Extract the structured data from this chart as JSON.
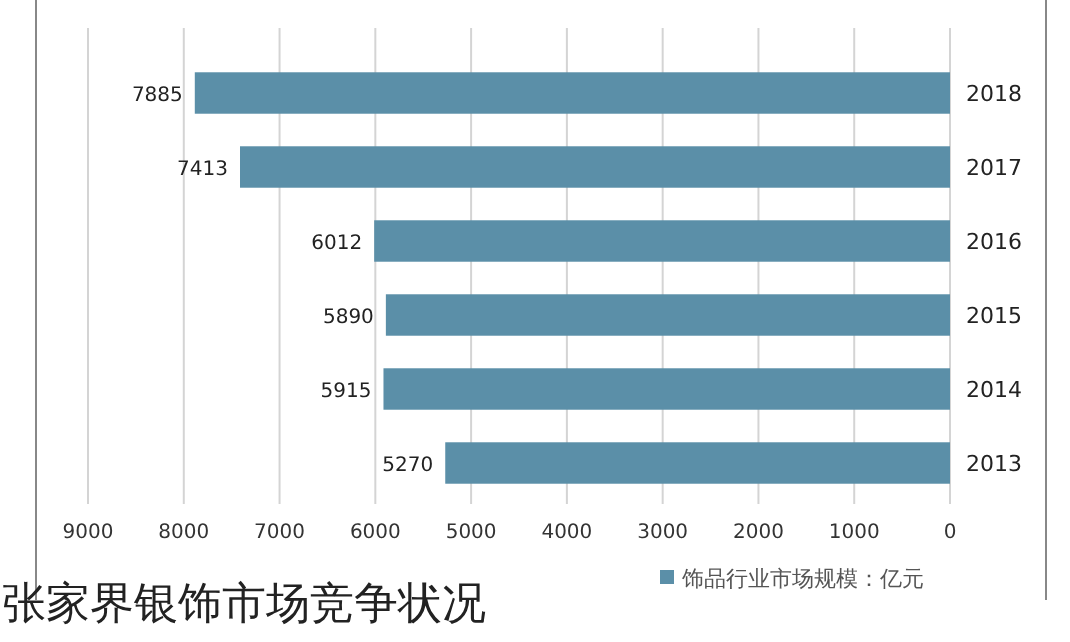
{
  "chart_data": {
    "type": "bar",
    "orientation": "horizontal",
    "title": "张家界银饰市场竞争状况",
    "categories": [
      "2018",
      "2017",
      "2016",
      "2015",
      "2014",
      "2013"
    ],
    "series": [
      {
        "name": "饰品行业市场规模：亿元",
        "color": "#5b8fa8",
        "values": [
          7885,
          7413,
          6012,
          5890,
          5915,
          5270
        ]
      }
    ],
    "xlim": [
      9000,
      0
    ],
    "xticks": [
      0,
      1000,
      2000,
      3000,
      4000,
      5000,
      6000,
      7000,
      8000,
      9000
    ],
    "grid": "x",
    "data_labels": true,
    "legend": "bottom"
  }
}
